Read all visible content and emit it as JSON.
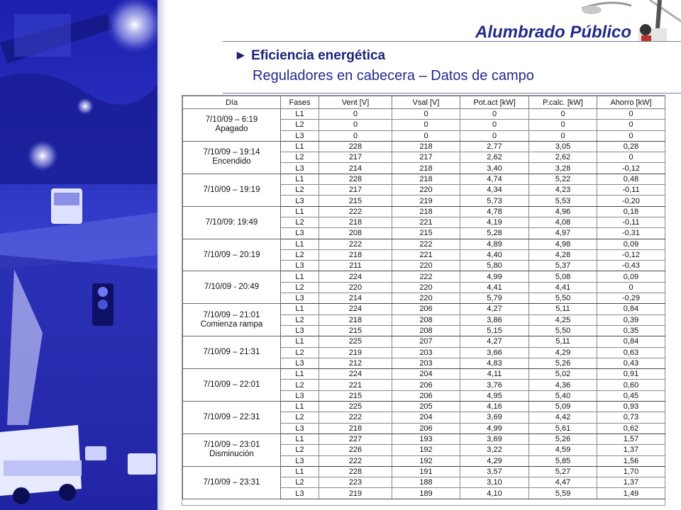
{
  "header": {
    "brand": "Alumbrado Público",
    "title": "► Eficiencia energética",
    "subtitle": "Reguladores en cabecera – Datos de campo"
  },
  "table": {
    "columns": [
      "Día",
      "Fases",
      "Vent [V]",
      "Vsal [V]",
      "Pot.act [kW]",
      "P.calc. [kW]",
      "Ahorro [kW]"
    ],
    "groups": [
      {
        "day": [
          "7/10/09 – 6:19",
          "Apagado"
        ],
        "rows": [
          [
            "L1",
            "0",
            "0",
            "0",
            "0",
            "0"
          ],
          [
            "L2",
            "0",
            "0",
            "0",
            "0",
            "0"
          ],
          [
            "L3",
            "0",
            "0",
            "0",
            "0",
            "0"
          ]
        ]
      },
      {
        "day": [
          "7/10/09 – 19:14",
          "Encendido"
        ],
        "rows": [
          [
            "L1",
            "228",
            "218",
            "2,77",
            "3,05",
            "0,28"
          ],
          [
            "L2",
            "217",
            "217",
            "2,62",
            "2,62",
            "0"
          ],
          [
            "L3",
            "214",
            "218",
            "3,40",
            "3,28",
            "-0,12"
          ]
        ]
      },
      {
        "day": [
          "7/10/09 – 19:19"
        ],
        "rows": [
          [
            "L1",
            "228",
            "218",
            "4,74",
            "5,22",
            "0,48"
          ],
          [
            "L2",
            "217",
            "220",
            "4,34",
            "4,23",
            "-0,11"
          ],
          [
            "L3",
            "215",
            "219",
            "5,73",
            "5,53",
            "-0,20"
          ]
        ]
      },
      {
        "day": [
          "7/10/09: 19:49"
        ],
        "rows": [
          [
            "L1",
            "222",
            "218",
            "4,78",
            "4,96",
            "0,18"
          ],
          [
            "L2",
            "218",
            "221",
            "4,19",
            "4,08",
            "-0,11"
          ],
          [
            "L3",
            "208",
            "215",
            "5,28",
            "4,97",
            "-0,31"
          ]
        ]
      },
      {
        "day": [
          "7/10/09 – 20:19"
        ],
        "rows": [
          [
            "L1",
            "222",
            "222",
            "4,89",
            "4,98",
            "0,09"
          ],
          [
            "L2",
            "218",
            "221",
            "4,40",
            "4,28",
            "-0,12"
          ],
          [
            "L3",
            "211",
            "220",
            "5,80",
            "5,37",
            "-0,43"
          ]
        ]
      },
      {
        "day": [
          "7/10/09 -  20:49"
        ],
        "rows": [
          [
            "L1",
            "224",
            "222",
            "4,99",
            "5,08",
            "0,09"
          ],
          [
            "L2",
            "220",
            "220",
            "4,41",
            "4,41",
            "0"
          ],
          [
            "L3",
            "214",
            "220",
            "5,79",
            "5,50",
            "-0,29"
          ]
        ]
      },
      {
        "day": [
          "7/10/09 – 21:01",
          "Comienza rampa"
        ],
        "rows": [
          [
            "L1",
            "224",
            "206",
            "4,27",
            "5,11",
            "0,84"
          ],
          [
            "L2",
            "218",
            "208",
            "3,86",
            "4,25",
            "0,39"
          ],
          [
            "L3",
            "215",
            "208",
            "5,15",
            "5,50",
            "0,35"
          ]
        ]
      },
      {
        "day": [
          "7/10/09 – 21:31"
        ],
        "rows": [
          [
            "L1",
            "225",
            "207",
            "4,27",
            "5,11",
            "0,84"
          ],
          [
            "L2",
            "219",
            "203",
            "3,66",
            "4,29",
            "0,63"
          ],
          [
            "L3",
            "212",
            "203",
            "4,83",
            "5,26",
            "0,43"
          ]
        ]
      },
      {
        "day": [
          "7/10/09 – 22:01"
        ],
        "rows": [
          [
            "L1",
            "224",
            "204",
            "4,11",
            "5,02",
            "0,91"
          ],
          [
            "L2",
            "221",
            "206",
            "3,76",
            "4,36",
            "0,60"
          ],
          [
            "L3",
            "215",
            "206",
            "4,95",
            "5,40",
            "0,45"
          ]
        ]
      },
      {
        "day": [
          "7/10/09 – 22:31"
        ],
        "rows": [
          [
            "L1",
            "225",
            "205",
            "4,16",
            "5,09",
            "0,93"
          ],
          [
            "L2",
            "222",
            "204",
            "3,69",
            "4,42",
            "0,73"
          ],
          [
            "L3",
            "218",
            "206",
            "4,99",
            "5,61",
            "0,62"
          ]
        ]
      },
      {
        "day": [
          "7/10/09 – 23:01",
          "Disminución"
        ],
        "rows": [
          [
            "L1",
            "227",
            "193",
            "3,69",
            "5,26",
            "1,57"
          ],
          [
            "L2",
            "226",
            "192",
            "3,22",
            "4,59",
            "1,37"
          ],
          [
            "L3",
            "222",
            "192",
            "4,29",
            "5,85",
            "1,56"
          ]
        ]
      },
      {
        "day": [
          "7/10/09 – 23:31"
        ],
        "rows": [
          [
            "L1",
            "228",
            "191",
            "3,57",
            "5,27",
            "1,70"
          ],
          [
            "L2",
            "223",
            "188",
            "3,10",
            "4,47",
            "1,37"
          ],
          [
            "L3",
            "219",
            "189",
            "4,10",
            "5,59",
            "1,49"
          ]
        ]
      }
    ]
  },
  "colors": {
    "brand": "#232a8a",
    "photo_tint": "#2a31c0"
  },
  "icons": {
    "bullet": "right-triangle-icon"
  }
}
